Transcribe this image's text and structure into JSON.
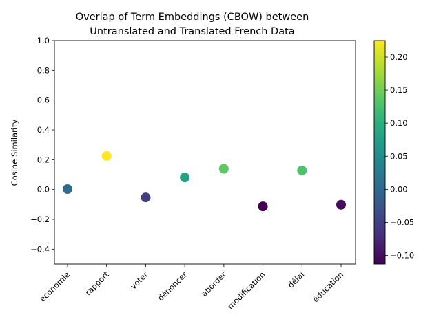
{
  "chart_data": {
    "type": "scatter",
    "title_lines": [
      "Overlap of Term Embeddings (CBOW) between",
      "Untranslated and Translated French Data"
    ],
    "xlabel": "",
    "ylabel": "Cosine Similarity",
    "categories": [
      "économie",
      "rapport",
      "voter",
      "dénoncer",
      "aborder",
      "modification",
      "délai",
      "éducation"
    ],
    "values": [
      0.003,
      0.225,
      -0.053,
      0.081,
      0.139,
      -0.113,
      0.128,
      -0.102
    ],
    "ylim": [
      -0.5,
      1.0
    ],
    "yticks": [
      "−0.4",
      "−0.2",
      "0.0",
      "0.2",
      "0.4",
      "0.6",
      "0.8",
      "1.0"
    ],
    "ytick_values": [
      -0.4,
      -0.2,
      0.0,
      0.2,
      0.4,
      0.6,
      0.8,
      1.0
    ],
    "colorbar": {
      "colormap": "viridis",
      "range": [
        -0.113,
        0.225
      ],
      "ticks": [
        "−0.10",
        "−0.05",
        "0.00",
        "0.05",
        "0.10",
        "0.15",
        "0.20"
      ],
      "tick_values": [
        -0.1,
        -0.05,
        0.0,
        0.05,
        0.1,
        0.15,
        0.2
      ]
    },
    "grid": false,
    "legend": "none"
  }
}
